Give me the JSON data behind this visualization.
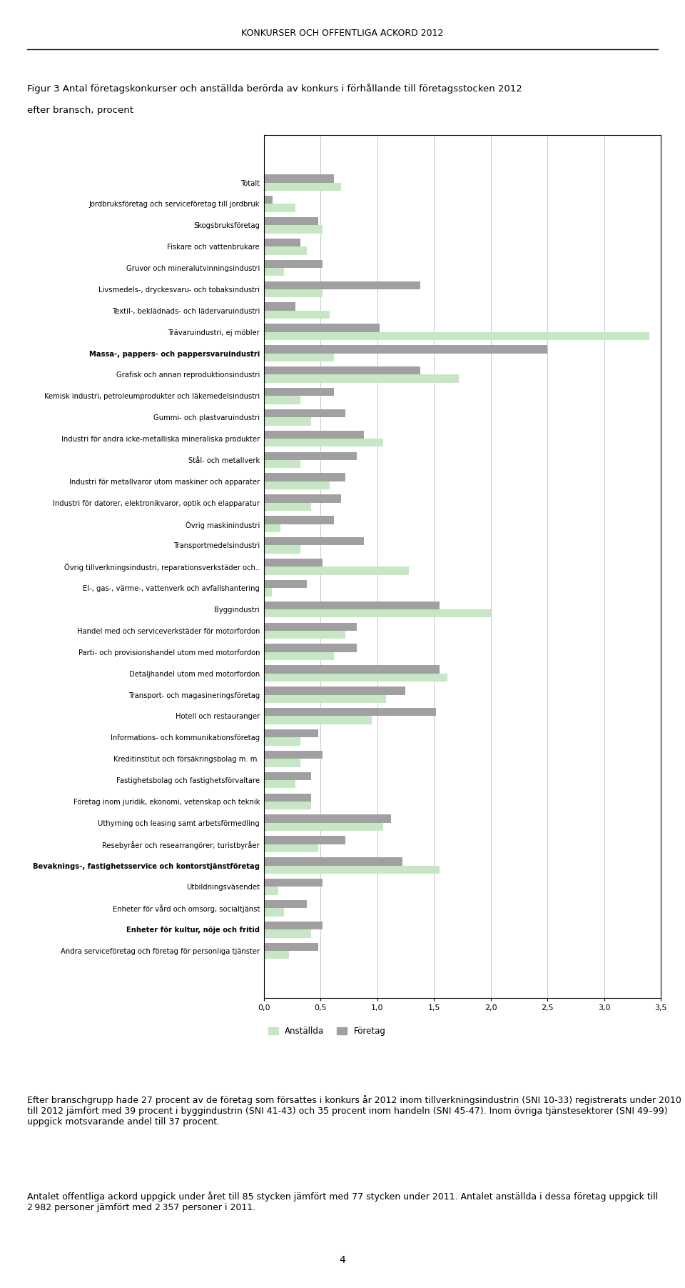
{
  "header": "KONKURSER OCH OFFENTLIGA ACKORD 2012",
  "title_line1": "Figur 3 Antal företagskonkurser och anställda berörda av konkurs i förhållande till företagsstocken 2012",
  "title_line2": "efter bransch, procent",
  "categories": [
    "Totalt",
    "Jordbruksföretag och serviceföretag till jordbruk",
    "Skogsbruksföretag",
    "Fiskare och vattenbrukare",
    "Gruvor och mineralutvinningsindustri",
    "Livsmedels-, dryckesvaru- och tobaksindustri",
    "Textil-, beklädnads- och lädervaruindustri",
    "Trävaruindustri, ej möbler",
    "Massa-, pappers- och pappersvaruindustri",
    "Grafisk och annan reproduktionsindustri",
    "Kemisk industri, petroleumprodukter och läkemedelsindustri",
    "Gummi- och plastvaruindustri",
    "Industri för andra icke-metalliska mineraliska produkter",
    "Stål- och metallverk",
    "Industri för metallvaror utom maskiner och apparater",
    "Industri för datorer, elektronikvaror, optik och elapparatur",
    "Övrig maskinindustri",
    "Transportmedelsindustri",
    "Övrig tillverkningsindustri, reparationsverkstäder och..",
    "El-, gas-, värme-, vattenverk och avfallshantering",
    "Byggindustri",
    "Handel med och serviceverkstäder för motorfordon",
    "Parti- och provisionshandel utom med motorfordon",
    "Detaljhandel utom med motorfordon",
    "Transport- och magasineringsföretag",
    "Hotell och restauranger",
    "Informations- och kommunikationsföretag",
    "Kreditinstitut och försäkringsbolag m. m.",
    "Fastighetsbolag och fastighetsförvaltare",
    "Företag inom juridik, ekonomi, vetenskap och teknik",
    "Uthyrning och leasing samt arbetsförmedling",
    "Resebyråer och researrangörer; turistbyråer",
    "Bevaknings-, fastighetsservice och kontorstjänstföretag",
    "Utbildningsväsendet",
    "Enheter för vård och omsorg, socialtjänst",
    "Enheter för kultur, nöje och fritid",
    "Andra serviceföretag och företag för personliga tjänster"
  ],
  "bold_categories": [
    "Massa-, pappers- och pappersvaruindustri",
    "Bevaknings-, fastighetsservice och kontorstjänstföretag",
    "Enheter för kultur, nöje och fritid"
  ],
  "anstallda": [
    0.68,
    0.28,
    0.52,
    0.38,
    0.18,
    0.52,
    0.58,
    3.4,
    0.62,
    1.72,
    0.32,
    0.42,
    1.05,
    0.32,
    0.58,
    0.42,
    0.15,
    0.32,
    1.28,
    0.07,
    2.0,
    0.72,
    0.62,
    1.62,
    1.08,
    0.95,
    0.32,
    0.32,
    0.28,
    0.42,
    1.05,
    0.48,
    1.55,
    0.13,
    0.18,
    0.42,
    0.22
  ],
  "foretag": [
    0.62,
    0.08,
    0.48,
    0.32,
    0.52,
    1.38,
    0.28,
    1.02,
    2.5,
    1.38,
    0.62,
    0.72,
    0.88,
    0.82,
    0.72,
    0.68,
    0.62,
    0.88,
    0.52,
    0.38,
    1.55,
    0.82,
    0.82,
    1.55,
    1.25,
    1.52,
    0.48,
    0.52,
    0.42,
    0.42,
    1.12,
    0.72,
    1.22,
    0.52,
    0.38,
    0.52,
    0.48
  ],
  "color_anstallda": "#c6e6c6",
  "color_foretag": "#a0a0a0",
  "xlim": [
    0,
    3.5
  ],
  "xticks": [
    0.0,
    0.5,
    1.0,
    1.5,
    2.0,
    2.5,
    3.0,
    3.5
  ],
  "xtick_labels": [
    "0,0",
    "0,5",
    "1,0",
    "1,5",
    "2,0",
    "2,5",
    "3,0",
    "3,5"
  ],
  "legend_anstallda": "Anställda",
  "legend_foretag": "Företag",
  "footer_p1": "Efter branschgrupp hade 27 procent av de företag som försattes i konkurs år 2012 inom tillverkningsindustrin (SNI 10-33) registrerats under 2010 till 2012 jämfört med 39 procent i byggindustrin (SNI 41-43) och 35 procent inom handeln (SNI 45-47). Inom övriga tjänstesektorer (SNI 49–99) uppgick motsvarande andel till 37 procent.",
  "footer_p2": "Antalet offentliga ackord uppgick under året till 85 stycken jämfört med 77 stycken under 2011. Antalet anställda i dessa företag uppgick till 2 982 personer jämfört med 2 357 personer i 2011.",
  "page_number": "4"
}
